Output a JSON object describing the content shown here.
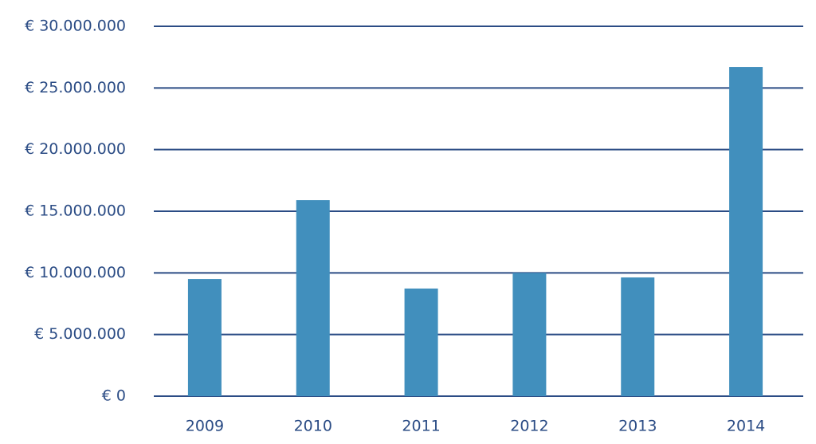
{
  "chart_data": {
    "type": "bar",
    "categories": [
      "2009",
      "2010",
      "2011",
      "2012",
      "2013",
      "2014"
    ],
    "values": [
      9500000,
      15900000,
      8730000,
      10000000,
      9630000,
      26700000
    ],
    "color": "#418fbd",
    "ylim": [
      0,
      30000000
    ],
    "yticks": [
      {
        "value": 0,
        "label": "€ 0"
      },
      {
        "value": 5000000,
        "label": "€ 5.000.000"
      },
      {
        "value": 10000000,
        "label": "€ 10.000.000"
      },
      {
        "value": 15000000,
        "label": "€ 15.000.000"
      },
      {
        "value": 20000000,
        "label": "€ 20.000.000"
      },
      {
        "value": 25000000,
        "label": "€ 25.000.000"
      },
      {
        "value": 30000000,
        "label": "€ 30.000.000"
      }
    ],
    "grid": true,
    "grid_color": "#2b4c85"
  }
}
